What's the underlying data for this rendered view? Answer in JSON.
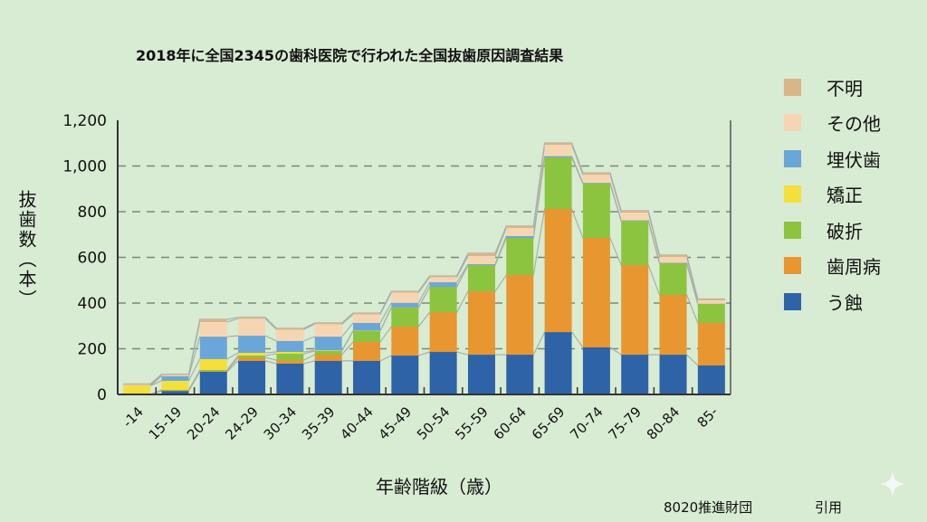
{
  "chart_data": {
    "type": "bar",
    "stacked": true,
    "title": "2018年に全国2345の歯科医院で行われた全国抜歯原因調査結果",
    "xlabel": "年齢階級（歳）",
    "ylabel": "抜歯数（本）",
    "ylim": [
      0,
      1200
    ],
    "yticks": [
      "0",
      "200",
      "400",
      "600",
      "800",
      "1,000",
      "1,200"
    ],
    "grid": true,
    "legend_position": "right",
    "categories": [
      "-14",
      "15-19",
      "20-24",
      "24-29",
      "30-34",
      "35-39",
      "40-44",
      "45-49",
      "50-54",
      "55-59",
      "60-64",
      "65-69",
      "70-74",
      "75-79",
      "80-84",
      "85-"
    ],
    "series": [
      {
        "name": "う蝕",
        "color": "#2e63a8",
        "values": [
          0,
          15,
          99,
          147,
          135,
          147,
          147,
          170,
          186,
          174,
          174,
          273,
          206,
          174,
          174,
          127
        ]
      },
      {
        "name": "歯周病",
        "color": "#e8962f",
        "values": [
          0,
          2,
          3,
          15,
          15,
          27,
          83,
          127,
          174,
          277,
          349,
          539,
          479,
          392,
          262,
          186
        ]
      },
      {
        "name": "破折",
        "color": "#8dc43f",
        "values": [
          0,
          3,
          5,
          8,
          28,
          16,
          47,
          83,
          111,
          115,
          162,
          226,
          238,
          194,
          138,
          83
        ]
      },
      {
        "name": "矯正",
        "color": "#f3e03b",
        "values": [
          38,
          40,
          48,
          12,
          8,
          3,
          2,
          1,
          0,
          0,
          0,
          0,
          0,
          0,
          0,
          0
        ]
      },
      {
        "name": "埋伏歯",
        "color": "#6aa7d8",
        "values": [
          0,
          20,
          98,
          75,
          48,
          60,
          34,
          20,
          20,
          4,
          8,
          5,
          3,
          2,
          2,
          1
        ]
      },
      {
        "name": "その他",
        "color": "#f6d6b2",
        "values": [
          4,
          5,
          64,
          75,
          50,
          55,
          38,
          45,
          23,
          36,
          36,
          50,
          36,
          34,
          26,
          15
        ]
      },
      {
        "name": "不明",
        "color": "#d9b68a",
        "values": [
          4,
          3,
          12,
          5,
          5,
          5,
          5,
          5,
          5,
          12,
          8,
          8,
          8,
          8,
          8,
          6
        ]
      }
    ]
  },
  "legend_order": [
    6,
    5,
    4,
    3,
    2,
    1,
    0
  ],
  "footer": {
    "source": "8020推進財団",
    "cite": "引用"
  },
  "icons": {
    "corner": "sparkle-icon"
  }
}
